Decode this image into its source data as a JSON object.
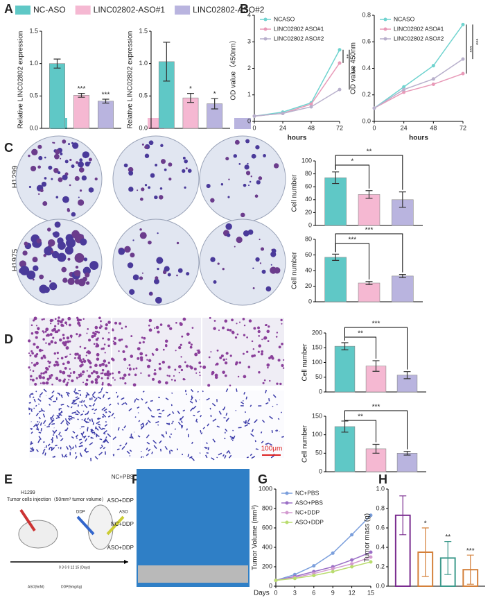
{
  "panel_labels": [
    "A",
    "B",
    "C",
    "D",
    "E",
    "F",
    "G",
    "H"
  ],
  "chart_data": [
    {
      "type": "bar",
      "y_label": "Relative LINC02802 expression",
      "categories": [
        "NC-ASO",
        "LINC02802-ASO#1",
        "LINC02802-ASO#2"
      ],
      "colors": [
        "#5fc8c6",
        "#f5b8d2",
        "#b9b4df"
      ],
      "values": [
        1.0,
        0.51,
        0.42
      ],
      "errors": [
        0.07,
        0.03,
        0.03
      ],
      "significance": [
        null,
        "***",
        "***"
      ],
      "ylim": [
        0,
        1.5
      ],
      "yticks": [
        {
          "value": 0,
          "label": "0.0"
        },
        0.5,
        {
          "value": 1,
          "label": "1.0"
        },
        1.5
      ],
      "legend": "top"
    },
    {
      "type": "bar",
      "y_label": "Relative LINC02802 expression",
      "categories": [
        null,
        null,
        null
      ],
      "colors": [
        "#5fc8c6",
        "#f5b8d2",
        "#b9b4df"
      ],
      "values": [
        1.03,
        0.47,
        0.38
      ],
      "errors": [
        0.3,
        0.07,
        0.08
      ],
      "significance": [
        null,
        "*",
        "*"
      ],
      "ylim": [
        0,
        1.5
      ],
      "yticks": [
        {
          "value": 0,
          "label": "0.0"
        },
        0.5,
        {
          "value": 1,
          "label": "1.0"
        },
        1.5
      ]
    },
    {
      "type": "line",
      "y_label": "OD value（450nm）",
      "x_label": "hours",
      "x": [
        0,
        24,
        48,
        72
      ],
      "xlim": [
        0,
        72
      ],
      "xticks": [
        0,
        24,
        48,
        72
      ],
      "ylim": [
        0,
        4
      ],
      "yticks": [
        0,
        1,
        2,
        3,
        4
      ],
      "series": [
        {
          "name": "NCASO",
          "color": "#6fd3cf",
          "values": [
            0.2,
            0.35,
            0.7,
            2.7
          ]
        },
        {
          "name": "LINC02802 ASO#1",
          "color": "#e89ab8",
          "values": [
            0.2,
            0.3,
            0.65,
            2.2
          ]
        },
        {
          "name": "LINC02802 ASO#2",
          "color": "#b8b0cc",
          "values": [
            0.2,
            0.3,
            0.55,
            1.2
          ]
        }
      ],
      "significance": [
        "**",
        "***"
      ]
    },
    {
      "type": "line",
      "y_label": "OD value  450nm",
      "x_label": "hours",
      "x": [
        0,
        24,
        48,
        72
      ],
      "xlim": [
        0,
        72
      ],
      "xticks": [
        0,
        24,
        48,
        72
      ],
      "ylim": [
        0,
        0.8
      ],
      "yticks": [
        {
          "value": 0,
          "label": "0.0"
        },
        0.2,
        0.4,
        0.6,
        0.8
      ],
      "series": [
        {
          "name": "NCASO",
          "color": "#6fd3cf",
          "values": [
            0.1,
            0.26,
            0.42,
            0.73
          ]
        },
        {
          "name": "LINC02802 ASO#1",
          "color": "#e89ab8",
          "values": [
            0.1,
            0.22,
            0.28,
            0.36
          ]
        },
        {
          "name": "LINC02802 ASO#2",
          "color": "#b8b0cc",
          "values": [
            0.1,
            0.24,
            0.32,
            0.47
          ]
        }
      ],
      "significance": [
        "***",
        "***"
      ]
    },
    {
      "type": "bar",
      "y_label": "Cell number",
      "categories": [
        null,
        null,
        null
      ],
      "colors": [
        "#5fc8c6",
        "#f5b8d2",
        "#b9b4df"
      ],
      "values": [
        74,
        48,
        40
      ],
      "errors": [
        9,
        6,
        12
      ],
      "significance": [
        null,
        "*",
        "**"
      ],
      "ylim": [
        0,
        100
      ],
      "yticks": [
        0,
        20,
        40,
        60,
        80,
        100
      ]
    },
    {
      "type": "bar",
      "y_label": "Cell number",
      "categories": [
        null,
        null,
        null
      ],
      "colors": [
        "#5fc8c6",
        "#f5b8d2",
        "#b9b4df"
      ],
      "values": [
        57,
        24,
        33
      ],
      "errors": [
        4,
        2,
        2
      ],
      "significance": [
        null,
        "***",
        "***"
      ],
      "ylim": [
        0,
        80
      ],
      "yticks": [
        0,
        20,
        40,
        60,
        80
      ]
    },
    {
      "type": "bar",
      "y_label": "Cell number",
      "categories": [
        null,
        null,
        null
      ],
      "colors": [
        "#5fc8c6",
        "#f5b8d2",
        "#b9b4df"
      ],
      "values": [
        155,
        88,
        57
      ],
      "errors": [
        12,
        18,
        12
      ],
      "significance": [
        null,
        "**",
        "***"
      ],
      "ylim": [
        0,
        200
      ],
      "yticks": [
        0,
        50,
        100,
        150,
        200
      ]
    },
    {
      "type": "bar",
      "y_label": "Cell number",
      "categories": [
        null,
        null,
        null
      ],
      "colors": [
        "#5fc8c6",
        "#f5b8d2",
        "#b9b4df"
      ],
      "values": [
        122,
        62,
        50
      ],
      "errors": [
        15,
        12,
        5
      ],
      "significance": [
        null,
        "**",
        "***"
      ],
      "ylim": [
        0,
        150
      ],
      "yticks": [
        0,
        50,
        100,
        150
      ]
    },
    {
      "type": "line",
      "y_label": "Tumor Volume (mm³)",
      "x_label": "Days",
      "x": [
        0,
        3,
        6,
        9,
        12,
        15
      ],
      "xlim": [
        0,
        15
      ],
      "xticks": [
        0,
        3,
        6,
        9,
        12,
        15
      ],
      "ylim": [
        0,
        1000
      ],
      "yticks": [
        0,
        200,
        400,
        600,
        800,
        1000
      ],
      "series": [
        {
          "name": "NC+PBS",
          "color": "#7b9fdc",
          "values": [
            60,
            120,
            210,
            340,
            530,
            730
          ]
        },
        {
          "name": "ASO+PBS",
          "color": "#9b6fc6",
          "values": [
            60,
            100,
            150,
            200,
            270,
            350
          ]
        },
        {
          "name": "NC+DDP",
          "color": "#d39ad0",
          "values": [
            60,
            90,
            130,
            180,
            230,
            300
          ]
        },
        {
          "name": "ASO+DDP",
          "color": "#b9dc6e",
          "values": [
            60,
            80,
            110,
            150,
            200,
            250
          ]
        }
      ]
    },
    {
      "type": "bar",
      "y_label": "Tumor mass (g)",
      "categories": [
        null,
        null,
        null,
        null
      ],
      "colors": [
        "#7a2c8f",
        "#d4803a",
        "#3d9a8c",
        "#d4803a"
      ],
      "values": [
        0.73,
        0.35,
        0.29,
        0.17
      ],
      "errors": [
        0.2,
        0.25,
        0.17,
        0.15
      ],
      "significance": [
        null,
        "*",
        "**",
        "***"
      ],
      "ylim": [
        0,
        1.0
      ],
      "yticks": [
        {
          "value": 0,
          "label": "0.0"
        },
        0.2,
        0.4,
        0.6,
        0.8,
        {
          "value": 1,
          "label": "1.0"
        }
      ],
      "bar_style": "outline"
    }
  ],
  "panel_c": {
    "rows": [
      "H1299",
      "H1975"
    ]
  },
  "panel_d": {
    "scale_bar": "100μm"
  },
  "panel_e": {
    "cell_line": "H1299",
    "injection": "Tumor cells injection（50mm³ tumor volume）",
    "drugs": [
      "DDP",
      "ASO"
    ],
    "timeline": "0 3 6 9 12 15 (Days)",
    "aso_dose": "ASO(5nM)",
    "ddp_dose": "DDP(5mg/kg)"
  },
  "panel_f": {
    "groups": [
      "NC+PBS",
      "ASO+DDP",
      "NC+DDP",
      "ASO+DDP"
    ]
  }
}
